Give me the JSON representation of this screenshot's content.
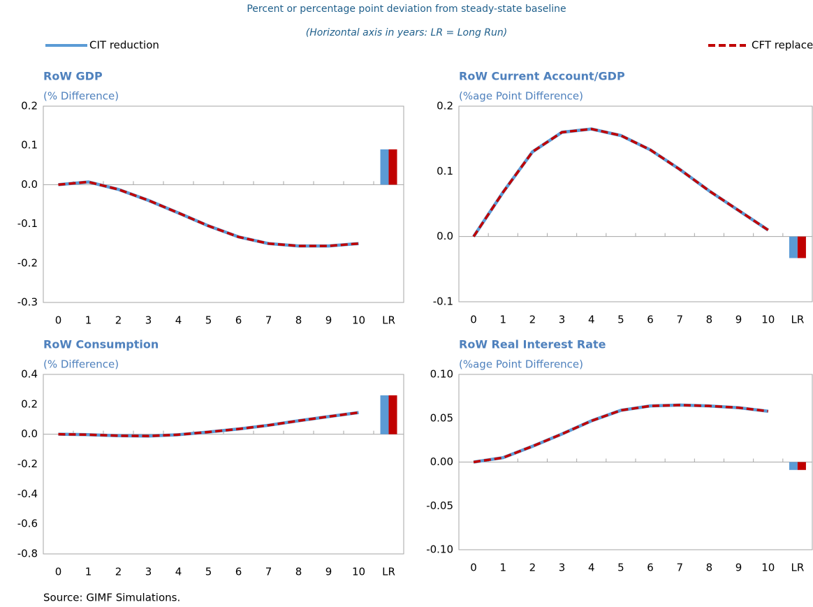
{
  "header": {
    "subtitle": "Percent or percentage point deviation from steady-state baseline",
    "note": "(Horizontal axis in years: LR = Long Run)"
  },
  "source": "Source: GIMF Simulations.",
  "chart_data": [
    {
      "type": "line",
      "title": "RoW GDP",
      "subtitle": "(% Difference)",
      "last_as_bar": true,
      "categories": [
        "0",
        "1",
        "2",
        "3",
        "4",
        "5",
        "6",
        "7",
        "8",
        "9",
        "10",
        "LR"
      ],
      "ylim": [
        -0.3,
        0.2
      ],
      "yticks": [
        -0.3,
        -0.2,
        -0.1,
        {
          "value": 0,
          "label": "0.0"
        },
        0.1,
        0.2
      ],
      "series": [
        {
          "name": "CIT reduction",
          "color": "#5b9bd5",
          "values": [
            0,
            0.007,
            -0.012,
            -0.04,
            -0.072,
            -0.105,
            -0.133,
            -0.15,
            -0.156,
            -0.156,
            -0.15,
            0.09
          ]
        },
        {
          "name": "CFT replacement",
          "color": "#c00000",
          "values": [
            0,
            0.007,
            -0.012,
            -0.04,
            -0.072,
            -0.105,
            -0.133,
            -0.15,
            -0.156,
            -0.156,
            -0.15,
            0.09
          ]
        }
      ]
    },
    {
      "type": "line",
      "title": "RoW Current Account/GDP",
      "subtitle": "(%age Point Difference)",
      "last_as_bar": true,
      "categories": [
        "0",
        "1",
        "2",
        "3",
        "4",
        "5",
        "6",
        "7",
        "8",
        "9",
        "10",
        "LR"
      ],
      "ylim": [
        -0.1,
        0.2
      ],
      "yticks": [
        -0.1,
        {
          "value": 0,
          "label": "0.0"
        },
        0.1,
        0.2
      ],
      "series": [
        {
          "name": "CIT reduction",
          "color": "#5b9bd5",
          "values": [
            0,
            0.068,
            0.13,
            0.16,
            0.165,
            0.155,
            0.133,
            0.103,
            0.07,
            0.04,
            0.01,
            -0.033
          ]
        },
        {
          "name": "CFT replacement",
          "color": "#c00000",
          "values": [
            0,
            0.068,
            0.13,
            0.16,
            0.165,
            0.155,
            0.133,
            0.103,
            0.07,
            0.04,
            0.01,
            -0.033
          ]
        }
      ]
    },
    {
      "type": "line",
      "title": "RoW Consumption",
      "subtitle": "(% Difference)",
      "last_as_bar": true,
      "categories": [
        "0",
        "1",
        "2",
        "3",
        "4",
        "5",
        "6",
        "7",
        "8",
        "9",
        "10",
        "LR"
      ],
      "ylim": [
        -0.8,
        0.4
      ],
      "yticks": [
        -0.8,
        -0.6,
        -0.4,
        -0.2,
        {
          "value": 0,
          "label": "0.0"
        },
        0.2,
        0.4
      ],
      "series": [
        {
          "name": "CIT reduction",
          "color": "#5b9bd5",
          "values": [
            0,
            -0.003,
            -0.01,
            -0.012,
            -0.003,
            0.015,
            0.035,
            0.06,
            0.09,
            0.118,
            0.145,
            0.26
          ]
        },
        {
          "name": "CFT replacement",
          "color": "#c00000",
          "values": [
            0,
            -0.003,
            -0.01,
            -0.012,
            -0.003,
            0.015,
            0.035,
            0.06,
            0.09,
            0.118,
            0.145,
            0.26
          ]
        }
      ]
    },
    {
      "type": "line",
      "title": "RoW Real Interest Rate",
      "subtitle": "(%age Point Difference)",
      "last_as_bar": true,
      "categories": [
        "0",
        "1",
        "2",
        "3",
        "4",
        "5",
        "6",
        "7",
        "8",
        "9",
        "10",
        "LR"
      ],
      "ylim": [
        -0.1,
        0.1
      ],
      "yticks": [
        {
          "value": -0.1,
          "label": "-0.10"
        },
        {
          "value": -0.05,
          "label": "-0.05"
        },
        {
          "value": 0,
          "label": "0.00"
        },
        {
          "value": 0.05,
          "label": "0.05"
        },
        {
          "value": 0.1,
          "label": "0.10"
        }
      ],
      "series": [
        {
          "name": "CIT reduction",
          "color": "#5b9bd5",
          "values": [
            0,
            0.005,
            0.018,
            0.032,
            0.047,
            0.059,
            0.064,
            0.065,
            0.064,
            0.062,
            0.058,
            -0.009
          ]
        },
        {
          "name": "CFT replacement",
          "color": "#c00000",
          "values": [
            0,
            0.005,
            0.018,
            0.032,
            0.047,
            0.059,
            0.064,
            0.065,
            0.064,
            0.062,
            0.058,
            -0.009
          ]
        }
      ]
    }
  ]
}
